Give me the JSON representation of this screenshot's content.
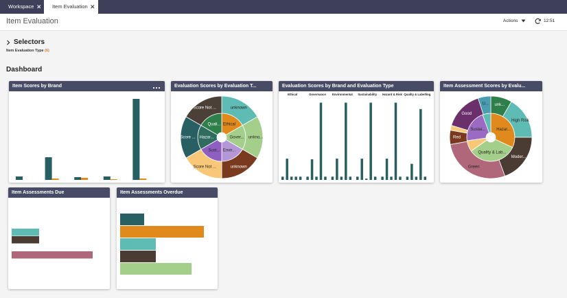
{
  "tabs": [
    {
      "label": "Workspace"
    },
    {
      "label": "Item Evaluation"
    }
  ],
  "header": {
    "title": "Item Evaluation",
    "actions": "Actions",
    "time": "12:51"
  },
  "selectors": {
    "title": "Selectors",
    "filter_label": "Item Evaluation Type",
    "filter_count": "(6)"
  },
  "dashboard": {
    "title": "Dashboard"
  },
  "chart_data": [
    {
      "type": "bar",
      "title": "Item Scores by Brand",
      "menu": true,
      "categories": [
        null,
        null,
        null,
        null,
        null
      ],
      "series": [
        {
          "color": "#275f63",
          "values": [
            5,
            33,
            4,
            5,
            118
          ]
        },
        {
          "color": "#e08a1e",
          "values": [
            0,
            2,
            3,
            1,
            2
          ]
        }
      ],
      "ylim": [
        0,
        120
      ]
    },
    {
      "type": "sunburst",
      "title": "Evaluation Scores by Evaluation T...",
      "rings": [
        {
          "labels": [
            "Ethical",
            "Gover...",
            "Envir...",
            "Sust...",
            "Hazar...",
            "Quali..."
          ],
          "values": [
            1,
            1,
            1,
            1,
            1,
            1
          ],
          "colors": [
            "#e08a1e",
            "#a3cf8a",
            "#b597d6",
            "#8e5fc0",
            "#2f6b5f",
            "#2f7f4a"
          ]
        },
        {
          "labels": [
            "unknown",
            "unkno...",
            "unknown",
            "Score Not ...",
            "Score ...",
            "Score Not ..."
          ],
          "values": [
            1,
            1,
            1,
            1,
            1,
            1
          ],
          "colors": [
            "#5fbcb4",
            "#a3cf8a",
            "#7a3a20",
            "#f8c878",
            "#275f63",
            "#4a4038"
          ]
        }
      ]
    },
    {
      "type": "bar",
      "title": "Evaluation Scores by Brand and Evaluation Type",
      "category_labels_top": true,
      "categories": [
        "Ethical",
        "Governance",
        "Environmental",
        "Sustainability",
        "Hazard & Risk",
        "Quality & Labelling"
      ],
      "series": [
        {
          "color": "#275f63",
          "values": [
            5,
            5,
            5,
            5,
            5,
            5
          ]
        },
        {
          "color": "#275f63",
          "values": [
            33,
            32,
            33,
            33,
            33,
            25
          ]
        },
        {
          "color": "#275f63",
          "values": [
            5,
            5,
            5,
            2,
            5,
            5
          ]
        },
        {
          "color": "#275f63",
          "values": [
            5,
            120,
            120,
            120,
            120,
            110
          ]
        },
        {
          "color": "#275f63",
          "values": [
            5,
            5,
            5,
            5,
            5,
            5
          ]
        }
      ],
      "ylim": [
        0,
        128
      ]
    },
    {
      "type": "sunburst",
      "title": "Item Assessment Scores by Evalu...",
      "rings": [
        {
          "labels": [
            "Hazar...",
            "Quality & Lab...",
            null,
            "Sustai...",
            null
          ],
          "values": [
            115,
            120,
            27,
            78,
            20
          ],
          "colors": [
            "#e08a1e",
            "#a3cf8a",
            "#f8c878",
            "#9b6bc3",
            "#5fbcb4"
          ]
        },
        {
          "labels": [
            "unk...",
            "High Risk",
            "Moder...",
            "Green",
            "Red",
            null,
            "Good",
            "U..."
          ],
          "values": [
            30,
            60,
            70,
            100,
            20,
            7,
            55,
            18
          ],
          "colors": [
            "#2f7f4a",
            "#5fbcb4",
            "#4a3c32",
            "#b0677a",
            "#7a3a20",
            "#f8c878",
            "#6b2f6b",
            "#4a9cb0"
          ]
        }
      ]
    },
    {
      "type": "bar",
      "horizontal": true,
      "title": "Item Assessments Due",
      "categories": [
        null,
        null,
        null,
        null
      ],
      "values": [
        40,
        40,
        0,
        118
      ],
      "colors": [
        "#5fbcb4",
        "#4a3c32",
        "#b0677a",
        "#b0677a"
      ],
      "xlim": [
        0,
        140
      ]
    },
    {
      "type": "bar",
      "horizontal": true,
      "title": "Item Assessments Overdue",
      "categories": [
        null,
        null,
        null,
        null,
        null
      ],
      "values": [
        35,
        122,
        52,
        52,
        104
      ],
      "colors": [
        "#275f63",
        "#e08a1e",
        "#5fbcb4",
        "#4a3c32",
        "#a3cf8a"
      ],
      "xlim": [
        0,
        140
      ]
    }
  ]
}
